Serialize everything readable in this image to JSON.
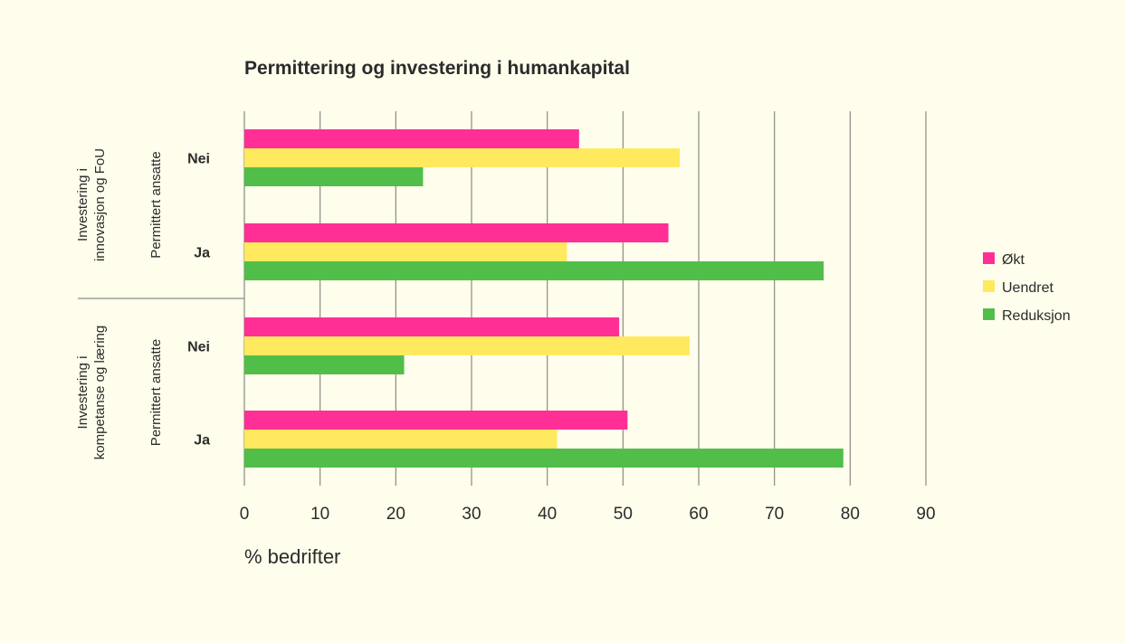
{
  "chart_data": {
    "type": "bar",
    "orientation": "horizontal",
    "title": "Permittering og investering i humankapital",
    "xlabel": "% bedrifter",
    "xlim": [
      0,
      90
    ],
    "xticks": [
      0,
      10,
      20,
      30,
      40,
      50,
      60,
      70,
      80,
      90
    ],
    "grid": "vertical",
    "legend_position": "right",
    "groups": [
      {
        "label": "Investering i innovasjon og FoU",
        "sublabel": "Permittert ansatte",
        "rows": [
          {
            "label": "Nei",
            "values": [
              44.2,
              57.5,
              23.6
            ]
          },
          {
            "label": "Ja",
            "values": [
              56.0,
              42.6,
              76.5
            ]
          }
        ]
      },
      {
        "label": "Investering i kompetanse og læring",
        "sublabel": "Permittert ansatte",
        "rows": [
          {
            "label": "Nei",
            "values": [
              49.5,
              58.8,
              21.1
            ]
          },
          {
            "label": "Ja",
            "values": [
              50.6,
              41.3,
              79.1
            ]
          }
        ]
      }
    ],
    "series": [
      {
        "name": "Økt",
        "color": "#ff2f95"
      },
      {
        "name": "Uendret",
        "color": "#ffe95e"
      },
      {
        "name": "Reduksjon",
        "color": "#52be4a"
      }
    ]
  }
}
